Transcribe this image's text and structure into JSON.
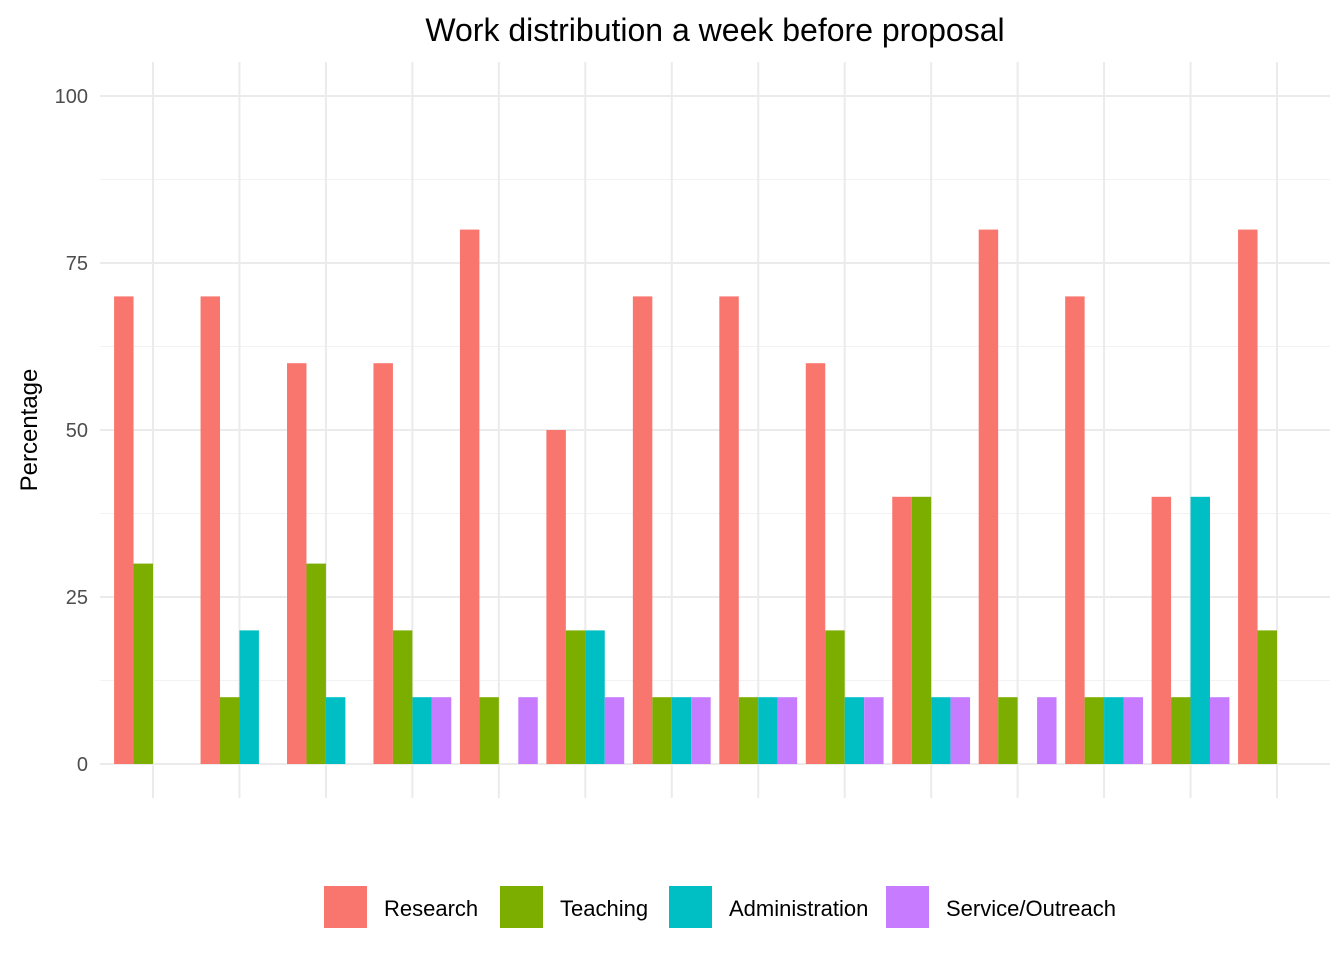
{
  "chart_data": {
    "type": "bar",
    "title": "Work distribution a week before proposal",
    "xlabel": "",
    "ylabel": "Percentage",
    "ylim": [
      0,
      100
    ],
    "yticks": [
      0,
      25,
      50,
      75,
      100
    ],
    "grid": true,
    "legend_position": "bottom",
    "group_count": 14,
    "series": [
      {
        "name": "Research",
        "color": "#F8766D",
        "values": [
          70,
          70,
          60,
          60,
          80,
          50,
          70,
          70,
          60,
          40,
          80,
          70,
          40,
          80
        ]
      },
      {
        "name": "Teaching",
        "color": "#7CAE00",
        "values": [
          30,
          10,
          30,
          20,
          10,
          20,
          10,
          10,
          20,
          40,
          10,
          10,
          10,
          20
        ]
      },
      {
        "name": "Administration",
        "color": "#00BFC4",
        "values": [
          0,
          20,
          10,
          10,
          0,
          20,
          10,
          10,
          10,
          10,
          0,
          10,
          40,
          0
        ]
      },
      {
        "name": "Service/Outreach",
        "color": "#C77CFF",
        "values": [
          0,
          0,
          0,
          10,
          10,
          10,
          10,
          10,
          10,
          10,
          10,
          10,
          10,
          0
        ]
      }
    ]
  }
}
